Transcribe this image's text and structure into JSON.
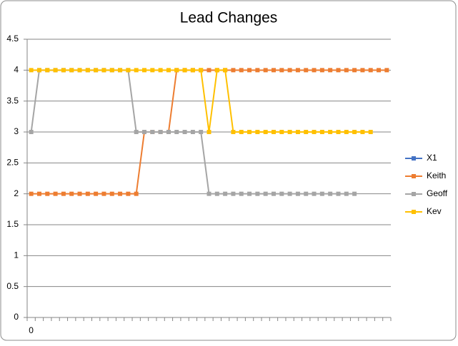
{
  "chart_data": {
    "type": "line",
    "title": "Lead Changes",
    "categories": [
      "0",
      null,
      null,
      null,
      null,
      null,
      null,
      null,
      null,
      null,
      null,
      null,
      null,
      null,
      null,
      null,
      null,
      null,
      null,
      null,
      null,
      null,
      null,
      null,
      null,
      null,
      null,
      null,
      null,
      null,
      null,
      null,
      null,
      null,
      null,
      null,
      null,
      null,
      null,
      null,
      null,
      null,
      null,
      null,
      null
    ],
    "series": [
      {
        "name": "X1",
        "color": "#4472c4",
        "values": [
          null,
          null,
          null,
          null,
          null,
          null,
          null,
          null,
          null,
          null,
          null,
          null,
          null,
          null,
          null,
          null,
          null,
          null,
          null,
          null,
          null,
          null,
          null,
          null,
          null,
          null,
          null,
          null,
          null,
          null,
          null,
          null,
          null,
          null,
          null,
          null,
          null,
          null,
          null,
          null,
          null,
          null,
          null,
          null,
          null
        ]
      },
      {
        "name": "Keith",
        "color": "#ed7d31",
        "values": [
          2,
          2,
          2,
          2,
          2,
          2,
          2,
          2,
          2,
          2,
          2,
          2,
          2,
          2,
          3,
          3,
          3,
          3,
          4,
          4,
          4,
          4,
          4,
          4,
          4,
          4,
          4,
          4,
          4,
          4,
          4,
          4,
          4,
          4,
          4,
          4,
          4,
          4,
          4,
          4,
          4,
          4,
          4,
          4,
          4
        ]
      },
      {
        "name": "Geoff",
        "color": "#a5a5a5",
        "values": [
          3,
          4,
          4,
          4,
          4,
          4,
          4,
          4,
          4,
          4,
          4,
          4,
          4,
          3,
          3,
          3,
          3,
          3,
          3,
          3,
          3,
          3,
          2,
          2,
          2,
          2,
          2,
          2,
          2,
          2,
          2,
          2,
          2,
          2,
          2,
          2,
          2,
          2,
          2,
          2,
          2,
          null,
          null,
          null,
          null
        ]
      },
      {
        "name": "Kev",
        "color": "#ffc000",
        "values": [
          4,
          4,
          4,
          4,
          4,
          4,
          4,
          4,
          4,
          4,
          4,
          4,
          4,
          4,
          4,
          4,
          4,
          4,
          4,
          4,
          4,
          4,
          3,
          4,
          4,
          3,
          3,
          3,
          3,
          3,
          3,
          3,
          3,
          3,
          3,
          3,
          3,
          3,
          3,
          3,
          3,
          3,
          3,
          null,
          null
        ]
      }
    ],
    "ylim": [
      0,
      4.5
    ],
    "yticks": [
      0,
      0.5,
      1,
      1.5,
      2,
      2.5,
      3,
      3.5,
      4,
      4.5
    ],
    "grid": true,
    "legend": "right"
  }
}
